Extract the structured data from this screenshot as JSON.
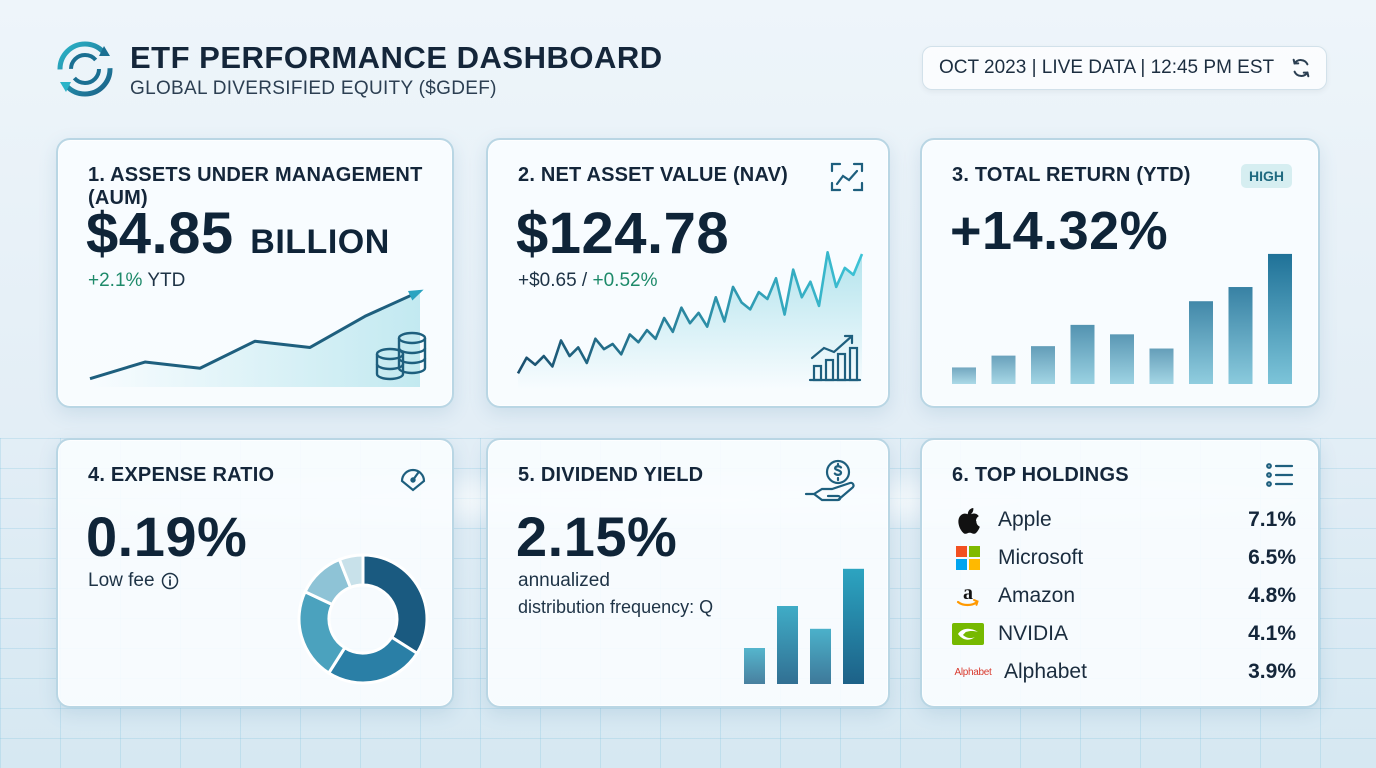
{
  "header": {
    "title": "ETF PERFORMANCE DASHBOARD",
    "subtitle": "GLOBAL DIVERSIFIED EQUITY ($GDEF)",
    "status": "OCT 2023 | LIVE DATA | 12:45 PM EST"
  },
  "cards": {
    "aum": {
      "title": "1. ASSETS UNDER MANAGEMENT (AUM)",
      "value": "$4.85",
      "unit": "BILLION",
      "change": "+2.1%",
      "change_suffix": "YTD",
      "trend": [
        8,
        24,
        18,
        44,
        38,
        68,
        92
      ]
    },
    "nav": {
      "title": "2. NET ASSET VALUE (NAV)",
      "value": "$124.78",
      "change_abs": "+$0.65",
      "change_sep": " / ",
      "change_pct": "+0.52%",
      "trend": [
        10,
        28,
        20,
        30,
        18,
        48,
        30,
        40,
        22,
        50,
        38,
        44,
        32,
        55,
        46,
        60,
        50,
        74,
        58,
        86,
        68,
        80,
        64,
        98,
        70,
        110,
        92,
        84,
        104,
        96,
        120,
        78,
        130,
        98,
        116,
        88,
        150,
        110,
        132,
        124,
        148
      ]
    },
    "total_return": {
      "title": "3. TOTAL RETURN (YTD)",
      "badge": "HIGH",
      "value": "+14.32%",
      "bars": [
        14,
        24,
        32,
        50,
        42,
        30,
        70,
        82,
        110
      ]
    },
    "expense": {
      "title": "4. EXPENSE RATIO",
      "value": "0.19%",
      "note": "Low fee",
      "donut": [
        34,
        25,
        23,
        12,
        6
      ]
    },
    "dividend": {
      "title": "5. DIVIDEND YIELD",
      "value": "2.15%",
      "note1": "annualized",
      "note2": "distribution frequency: Q",
      "bars": [
        30,
        65,
        46,
        96
      ]
    },
    "holdings": {
      "title": "6. TOP HOLDINGS",
      "items": [
        {
          "name": "Apple",
          "pct": "7.1%",
          "logo": "apple-icon"
        },
        {
          "name": "Microsoft",
          "pct": "6.5%",
          "logo": "microsoft-icon"
        },
        {
          "name": "Amazon",
          "pct": "4.8%",
          "logo": "amazon-icon"
        },
        {
          "name": "NVIDIA",
          "pct": "4.1%",
          "logo": "nvidia-icon"
        },
        {
          "name": "Alphabet",
          "pct": "3.9%",
          "logo": "alphabet-logo",
          "logo_text": "Alphabet"
        }
      ]
    }
  },
  "colors": {
    "accent": "#1a6f92",
    "accent_light": "#5fc6d6",
    "dark_navy": "#0f2438",
    "positive": "#1e8a6a"
  }
}
